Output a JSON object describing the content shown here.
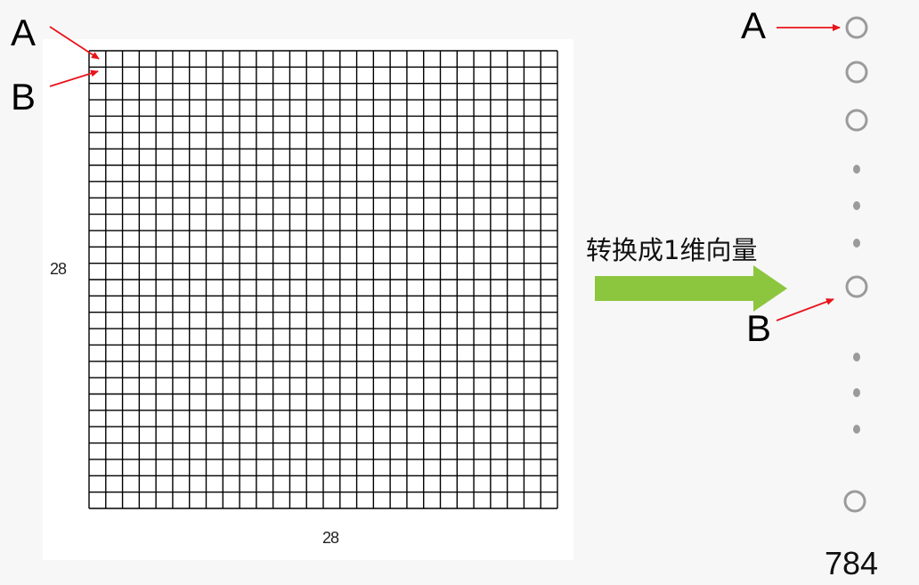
{
  "grid": {
    "rows": 28,
    "cols": 28,
    "height_label": "28",
    "width_label": "28"
  },
  "pointer_labels": {
    "grid_first": "A",
    "grid_second": "B",
    "vector_first": "A",
    "vector_second": "B"
  },
  "transform_caption": "转换成1维向量",
  "vector": {
    "length_label": "784"
  },
  "colors": {
    "pointer_arrow": "#e8141b",
    "transform_arrow": "#8cc63f",
    "node_stroke": "#9b9b9b",
    "grid_line": "#000000"
  }
}
